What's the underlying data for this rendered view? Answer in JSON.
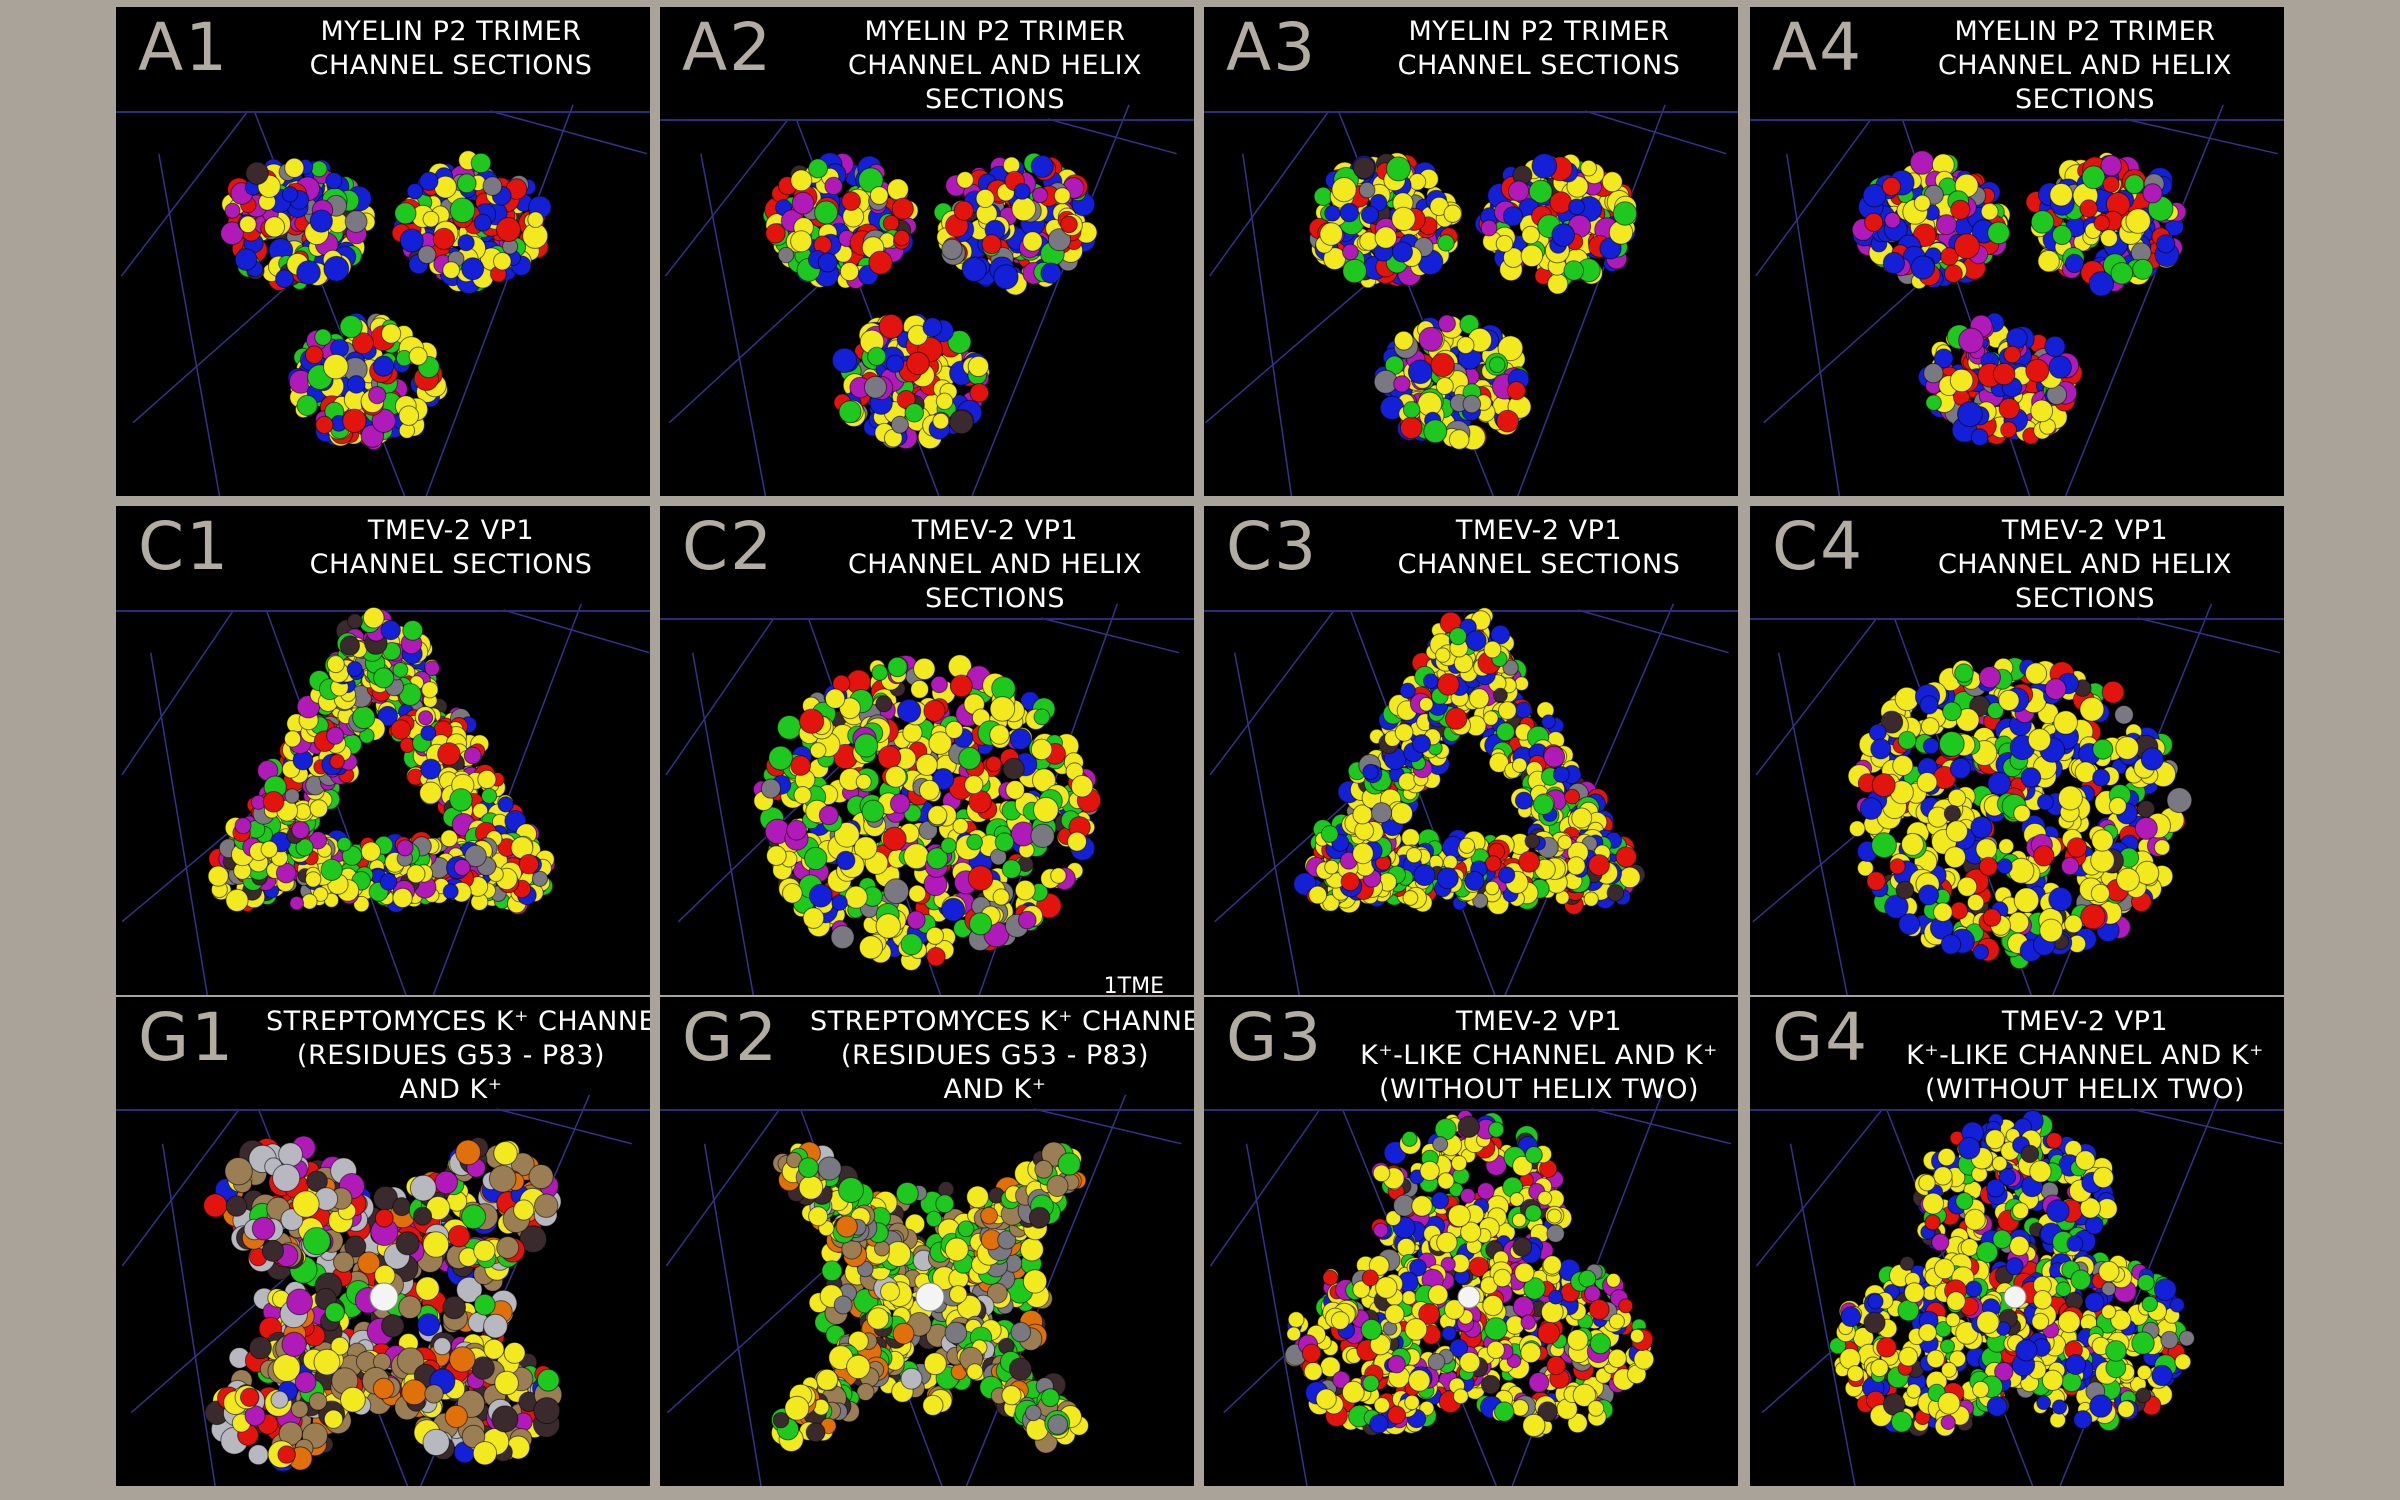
{
  "panels": [
    {
      "id": "A1",
      "title": [
        "MYELIN P2 TRIMER",
        "CHANNEL SECTIONS"
      ],
      "layout": "trimer",
      "style": "A"
    },
    {
      "id": "A2",
      "title": [
        "MYELIN P2 TRIMER",
        "CHANNEL AND HELIX",
        "SECTIONS"
      ],
      "layout": "trimer",
      "style": "A"
    },
    {
      "id": "A3",
      "title": [
        "MYELIN P2 TRIMER",
        "CHANNEL SECTIONS"
      ],
      "layout": "trimer",
      "style": "A3"
    },
    {
      "id": "A4",
      "title": [
        "MYELIN P2 TRIMER",
        "CHANNEL AND HELIX",
        "SECTIONS"
      ],
      "layout": "trimer",
      "style": "A4"
    },
    {
      "id": "C1",
      "title": [
        "TMEV-2 VP1",
        "CHANNEL SECTIONS"
      ],
      "layout": "ring",
      "style": "C"
    },
    {
      "id": "C2",
      "title": [
        "TMEV-2 VP1",
        "CHANNEL AND HELIX",
        "SECTIONS"
      ],
      "layout": "blob",
      "style": "C",
      "note": "1TME"
    },
    {
      "id": "C3",
      "title": [
        "TMEV-2 VP1",
        "CHANNEL SECTIONS"
      ],
      "layout": "ring",
      "style": "C3"
    },
    {
      "id": "C4",
      "title": [
        "TMEV-2 VP1",
        "CHANNEL AND HELIX",
        "SECTIONS"
      ],
      "layout": "blob",
      "style": "C3"
    },
    {
      "id": "G1",
      "title": [
        "STREPTOMYCES K⁺ CHANNEL",
        "(RESIDUES G53 - P83)",
        "AND K⁺"
      ],
      "layout": "cross",
      "style": "G1"
    },
    {
      "id": "G2",
      "title": [
        "STREPTOMYCES K⁺ CHANNEL",
        "(RESIDUES G53 - P83)",
        "AND K⁺"
      ],
      "layout": "star",
      "style": "G2"
    },
    {
      "id": "G3",
      "title": [
        "TMEV-2 VP1",
        "K⁺-LIKE CHANNEL AND K⁺",
        "(WITHOUT HELIX TWO)"
      ],
      "layout": "trilobe",
      "style": "C"
    },
    {
      "id": "G4",
      "title": [
        "TMEV-2 VP1",
        "K⁺-LIKE CHANNEL AND K⁺",
        "(WITHOUT HELIX TWO)"
      ],
      "layout": "trilobe",
      "style": "C3"
    }
  ],
  "colors": {
    "yellow": "#f2ea1e",
    "red": "#e3140e",
    "blue": "#1420d8",
    "green": "#1ec81e",
    "magenta": "#b01ab8",
    "gray": "#7a7880",
    "dark": "#3a2a2e",
    "tan": "#9c7e55",
    "orange": "#e0700a",
    "lightgray": "#b8b8c0",
    "white": "#ffffff"
  }
}
